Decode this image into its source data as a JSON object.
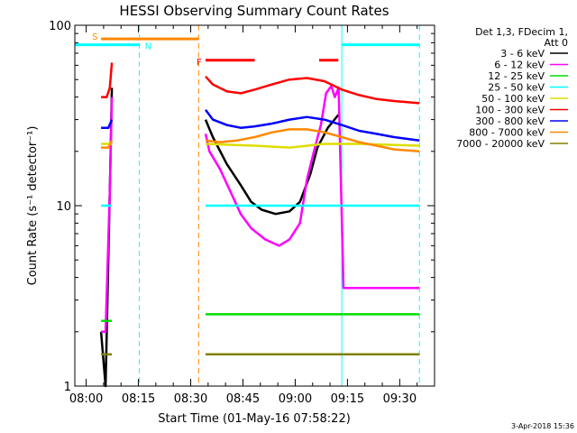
{
  "chart_data": {
    "type": "line",
    "title": "HESSI Observing Summary Count Rates",
    "xlabel": "Start Time (01-May-16 07:58:22)",
    "ylabel": "Count Rate (s⁻¹ detector⁻¹)",
    "x_ticks": [
      "08:00",
      "08:15",
      "08:30",
      "08:45",
      "09:00",
      "09:15",
      "09:30"
    ],
    "x_range_minutes": [
      -1.63,
      101.63
    ],
    "y_scale": "log",
    "ylim": [
      1,
      100
    ],
    "y_ticks": [
      "1",
      "10",
      "100"
    ],
    "legend_title_lines": [
      "Det 1,3, FDecim 1,",
      "Att 0"
    ],
    "legend_position": "right",
    "timestamp": "3-Apr-2018 15:36",
    "series": [
      {
        "name": "3 - 6 keV",
        "color": "#000000",
        "segments": [
          {
            "x": [
              5.9,
              7.2,
              8.4,
              9.0
            ],
            "y": [
              2.0,
              1.0,
              12.0,
              45.0
            ]
          },
          {
            "x": [
              35.9,
              38,
              42,
              46,
              49,
              52,
              56,
              60,
              63,
              66,
              68,
              71,
              74.1
            ],
            "y": [
              30,
              24,
              17,
              13,
              10.5,
              9.5,
              9.0,
              9.3,
              10.5,
              15,
              21,
              27,
              32
            ]
          }
        ]
      },
      {
        "name": "6 - 12 keV",
        "color": "#ff00ff",
        "segments": [
          {
            "x": [
              5.9,
              7.2,
              8.4,
              9.0
            ],
            "y": [
              2.0,
              2.0,
              12.0,
              40.0
            ]
          },
          {
            "x": [
              35.9,
              37,
              40,
              43,
              46,
              49,
              53,
              57,
              60,
              63,
              65,
              67,
              69,
              70.5,
              72,
              73,
              74.1,
              75.5,
              79,
              88,
              97.3
            ],
            "y": [
              25,
              20,
              16,
              12,
              9,
              7.5,
              6.5,
              6.0,
              6.5,
              8,
              14,
              20,
              28,
              42,
              46,
              40,
              45,
              3.5,
              3.5,
              3.5,
              3.5
            ]
          }
        ]
      },
      {
        "name": "12 - 25 keV",
        "color": "#00dd00",
        "segments": [
          {
            "x": [
              5.9,
              9.0
            ],
            "y": [
              2.3,
              2.3
            ]
          },
          {
            "x": [
              35.9,
              97.3
            ],
            "y": [
              2.5,
              2.5
            ]
          }
        ]
      },
      {
        "name": "25 - 50 keV",
        "color": "#00ffff",
        "segments": [
          {
            "x": [
              5.9,
              9.0
            ],
            "y": [
              10.0,
              10.0
            ]
          },
          {
            "x": [
              35.9,
              97.3
            ],
            "y": [
              10.0,
              10.0
            ]
          }
        ]
      },
      {
        "name": "50 - 100 keV",
        "color": "#dddd00",
        "segments": [
          {
            "x": [
              5.9,
              9.0
            ],
            "y": [
              22.0,
              22.0
            ]
          },
          {
            "x": [
              35.9,
              50,
              60,
              70,
              80,
              97.3
            ],
            "y": [
              22,
              21.5,
              21,
              22,
              22,
              21.5
            ]
          }
        ]
      },
      {
        "name": "100 - 300 keV",
        "color": "#ff0000",
        "segments": [
          {
            "x": [
              5.9,
              7.5,
              8.4,
              9.0
            ],
            "y": [
              40,
              40,
              45,
              62
            ]
          },
          {
            "x": [
              35.9,
              38,
              42,
              46,
              50,
              55,
              60,
              65,
              70,
              75,
              80,
              85,
              90,
              97.3
            ],
            "y": [
              52,
              47,
              43,
              42,
              44,
              47,
              50,
              51,
              49,
              44,
              41,
              39,
              38,
              37
            ]
          }
        ]
      },
      {
        "name": "300 - 800 keV",
        "color": "#0000ff",
        "segments": [
          {
            "x": [
              5.9,
              8.0,
              9.0
            ],
            "y": [
              27,
              27,
              30
            ]
          },
          {
            "x": [
              35.9,
              38,
              42,
              46,
              50,
              55,
              60,
              65,
              70,
              75,
              80,
              85,
              90,
              97.3
            ],
            "y": [
              34,
              30,
              28,
              27,
              27.5,
              28.5,
              30,
              31,
              30,
              28,
              26,
              25,
              24,
              23
            ]
          }
        ]
      },
      {
        "name": "800 - 7000 keV",
        "color": "#ff8800",
        "segments": [
          {
            "x": [
              5.9,
              8.0,
              9.0
            ],
            "y": [
              21,
              21,
              23
            ]
          },
          {
            "x": [
              35.9,
              40,
              45,
              50,
              55,
              60,
              65,
              70,
              75,
              80,
              85,
              90,
              97.3
            ],
            "y": [
              23,
              22.5,
              23,
              24,
              25.5,
              26.5,
              26.5,
              25.5,
              24,
              22.5,
              21.5,
              20.5,
              20
            ]
          }
        ]
      },
      {
        "name": "7000 - 20000 keV",
        "color": "#808000",
        "segments": [
          {
            "x": [
              5.9,
              9.0
            ],
            "y": [
              1.5,
              1.5
            ]
          },
          {
            "x": [
              35.9,
              97.3
            ],
            "y": [
              1.5,
              1.5
            ]
          }
        ]
      }
    ],
    "bars": [
      {
        "label": "S",
        "color": "#ff8800",
        "x_start": 5.9,
        "x_end": 33.9,
        "y": 84
      },
      {
        "label": "N",
        "color": "#00ffff",
        "x_start": -1.63,
        "x_end": 16.9,
        "y": 78
      },
      {
        "label": "",
        "color": "#00ffff",
        "x_start": 75.0,
        "x_end": 97.3,
        "y": 78
      },
      {
        "label": "F",
        "color": "#ff0000",
        "x_start": 35.9,
        "x_end": 50.0,
        "y": 64
      },
      {
        "label": "",
        "color": "#ff0000",
        "x_start": 68.5,
        "x_end": 74.0,
        "y": 64
      }
    ],
    "vlines": [
      {
        "x": 16.9,
        "color": "#00ffff",
        "dash": true
      },
      {
        "x": 33.9,
        "color": "#ff8800",
        "dash": true
      },
      {
        "x": 75.0,
        "color": "#00ffff",
        "dash": false
      },
      {
        "x": 97.3,
        "color": "#00ffff",
        "dash": true
      }
    ]
  }
}
